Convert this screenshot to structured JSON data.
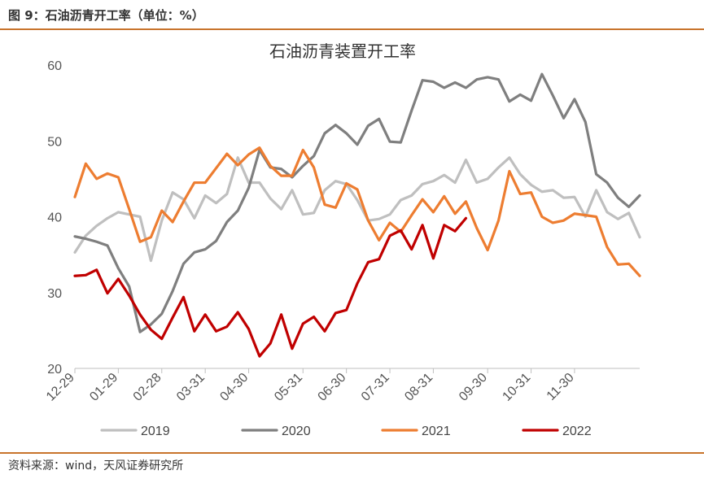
{
  "figure": {
    "caption": "图 9：石油沥青开工率（单位：%）",
    "source": "资料来源：wind，天风证券研究所"
  },
  "colors": {
    "accent": "#c8742c",
    "series_2019": "#bfbfbf",
    "series_2020": "#7f7f7f",
    "series_2021": "#ed7d31",
    "series_2022": "#c00000"
  },
  "chart_data": {
    "type": "line",
    "title": "石油沥青装置开工率",
    "xlabel": "",
    "ylabel": "",
    "ylim": [
      20,
      60
    ],
    "yticks": [
      20,
      30,
      40,
      50,
      60
    ],
    "xlim_week": [
      0,
      52
    ],
    "xticks": [
      {
        "label": "12-29",
        "week": 0
      },
      {
        "label": "01-29",
        "week": 4
      },
      {
        "label": "02-28",
        "week": 8
      },
      {
        "label": "03-31",
        "week": 12
      },
      {
        "label": "04-30",
        "week": 16
      },
      {
        "label": "05-31",
        "week": 21
      },
      {
        "label": "06-30",
        "week": 25
      },
      {
        "label": "07-31",
        "week": 29
      },
      {
        "label": "08-31",
        "week": 33
      },
      {
        "label": "09-30",
        "week": 38
      },
      {
        "label": "10-31",
        "week": 42
      },
      {
        "label": "11-30",
        "week": 46
      }
    ],
    "grid": false,
    "legend_position": "bottom",
    "series": [
      {
        "name": "2019",
        "color": "#bfbfbf",
        "values": [
          35.3,
          37.5,
          38.8,
          39.8,
          40.6,
          40.3,
          40.0,
          34.2,
          39.5,
          43.2,
          42.3,
          39.8,
          42.8,
          41.8,
          43.0,
          47.8,
          44.5,
          44.5,
          42.4,
          41.0,
          43.5,
          40.3,
          40.5,
          43.5,
          44.7,
          44.3,
          42.2,
          39.5,
          39.7,
          40.3,
          42.2,
          42.8,
          44.3,
          44.7,
          45.5,
          44.5,
          47.5,
          44.5,
          45.0,
          46.5,
          47.8,
          45.6,
          44.2,
          43.3,
          43.5,
          42.5,
          42.6,
          40.0,
          43.5,
          40.6,
          39.7,
          40.5,
          37.3
        ]
      },
      {
        "name": "2020",
        "color": "#7f7f7f",
        "values": [
          37.4,
          37.1,
          36.7,
          36.2,
          33.2,
          30.8,
          24.8,
          25.8,
          27.2,
          30.2,
          33.8,
          35.3,
          35.7,
          36.8,
          39.3,
          40.8,
          43.8,
          48.8,
          46.5,
          46.3,
          45.2,
          46.7,
          48.0,
          51.0,
          52.1,
          51.0,
          49.5,
          52.0,
          52.9,
          49.9,
          49.8,
          54.0,
          58.0,
          57.8,
          57.0,
          57.7,
          57.0,
          58.1,
          58.4,
          58.1,
          55.2,
          56.1,
          55.3,
          58.8,
          56.0,
          53.0,
          55.5,
          52.5,
          45.6,
          44.5,
          42.5,
          41.3,
          42.8
        ]
      },
      {
        "name": "2021",
        "color": "#ed7d31",
        "values": [
          42.6,
          47.0,
          45.0,
          45.7,
          45.2,
          41.0,
          36.7,
          37.3,
          40.8,
          39.3,
          42.0,
          44.5,
          44.5,
          46.4,
          48.3,
          46.8,
          48.2,
          49.1,
          46.7,
          45.4,
          45.4,
          48.8,
          46.5,
          41.6,
          41.2,
          44.4,
          43.6,
          39.5,
          36.9,
          39.2,
          38.0,
          40.2,
          42.3,
          40.6,
          42.7,
          40.4,
          42.0,
          38.5,
          35.6,
          39.5,
          46.0,
          43.0,
          43.2,
          40.0,
          39.2,
          39.5,
          40.4,
          40.2,
          40.0,
          36.0,
          33.7,
          33.8,
          32.2
        ]
      },
      {
        "name": "2022",
        "color": "#c00000",
        "values": [
          32.2,
          32.3,
          33.0,
          29.9,
          31.8,
          29.6,
          27.1,
          25.1,
          23.9,
          26.7,
          29.4,
          24.9,
          27.1,
          24.9,
          25.5,
          27.4,
          25.2,
          21.6,
          23.3,
          27.1,
          22.6,
          25.9,
          26.8,
          24.9,
          27.3,
          27.7,
          31.2,
          34.0,
          34.4,
          37.5,
          38.2,
          35.7,
          38.9,
          34.5,
          38.9,
          38.1,
          39.8
        ]
      }
    ]
  }
}
